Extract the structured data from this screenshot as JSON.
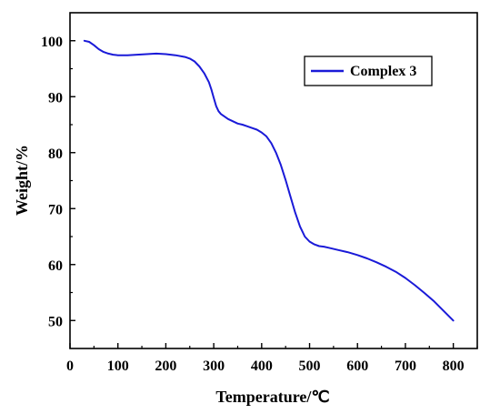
{
  "chart_data": {
    "type": "line",
    "title": "",
    "xlabel": "Temperature/℃",
    "ylabel": "Weight/%",
    "xlim": [
      0,
      850
    ],
    "ylim": [
      45,
      105
    ],
    "xticks": [
      0,
      100,
      200,
      300,
      400,
      500,
      600,
      700,
      800
    ],
    "yticks": [
      50,
      60,
      70,
      80,
      90,
      100
    ],
    "grid": false,
    "legend_position": "top-right",
    "series": [
      {
        "name": "Complex 3",
        "color": "#1a1ad8",
        "x": [
          30,
          40,
          50,
          60,
          70,
          80,
          90,
          100,
          120,
          140,
          160,
          180,
          200,
          220,
          240,
          250,
          260,
          270,
          280,
          290,
          295,
          300,
          305,
          310,
          315,
          320,
          330,
          340,
          350,
          360,
          370,
          380,
          390,
          400,
          410,
          420,
          430,
          440,
          450,
          460,
          470,
          480,
          490,
          500,
          510,
          520,
          530,
          540,
          560,
          580,
          600,
          620,
          640,
          660,
          680,
          700,
          720,
          740,
          760,
          780,
          800
        ],
        "y": [
          100,
          99.8,
          99.2,
          98.5,
          98.0,
          97.7,
          97.5,
          97.4,
          97.4,
          97.5,
          97.6,
          97.7,
          97.6,
          97.4,
          97.1,
          96.8,
          96.3,
          95.4,
          94.2,
          92.6,
          91.3,
          89.8,
          88.3,
          87.4,
          86.9,
          86.6,
          86.0,
          85.6,
          85.2,
          85.0,
          84.7,
          84.4,
          84.1,
          83.6,
          82.9,
          81.7,
          80.0,
          77.8,
          75.1,
          72.2,
          69.3,
          66.8,
          65.0,
          64.1,
          63.6,
          63.3,
          63.2,
          63.0,
          62.6,
          62.2,
          61.7,
          61.1,
          60.4,
          59.6,
          58.7,
          57.6,
          56.3,
          54.9,
          53.4,
          51.7,
          50.0
        ]
      }
    ]
  }
}
